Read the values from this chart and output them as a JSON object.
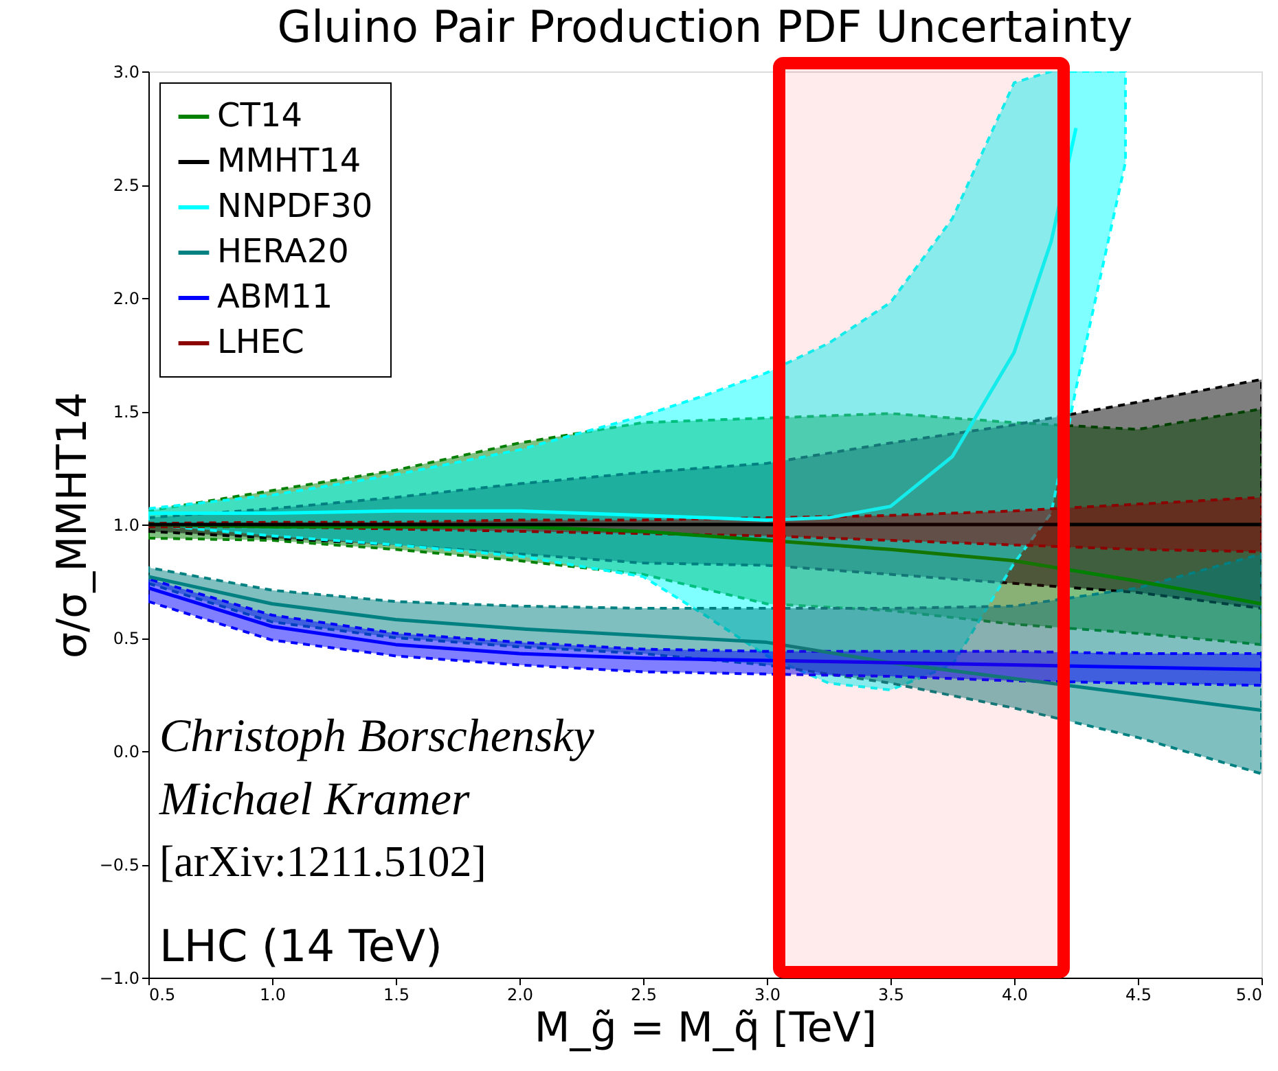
{
  "chart_data": {
    "type": "line",
    "title": "Gluino Pair Production PDF Uncertainty",
    "xlabel": "M_g̃ = M_q̃ [TeV]",
    "ylabel": "σ/σ_MMHT14",
    "xlim": [
      0.5,
      5.0
    ],
    "ylim": [
      -1.0,
      3.0
    ],
    "xticks": [
      0.5,
      {
        "value": 1,
        "label": "1.0"
      },
      1.5,
      {
        "value": 2,
        "label": "2.0"
      },
      2.5,
      {
        "value": 3,
        "label": "3.0"
      },
      3.5,
      {
        "value": 4,
        "label": "4.0"
      },
      4.5,
      {
        "value": 5,
        "label": "5.0"
      }
    ],
    "yticks": [
      {
        "value": -1,
        "label": "−1.0"
      },
      -0.5,
      {
        "value": 0,
        "label": "0.0"
      },
      0.5,
      {
        "value": 1,
        "label": "1.0"
      },
      1.5,
      {
        "value": 2,
        "label": "2.0"
      },
      2.5,
      {
        "value": 3,
        "label": "3.0"
      }
    ],
    "grid": false,
    "legend": "top left",
    "marker": "none",
    "line_style": "solid",
    "x": [
      0.5,
      1.0,
      1.5,
      2.0,
      2.5,
      3.0,
      3.5,
      4.0,
      4.5,
      5.0
    ],
    "series": [
      {
        "name": "CT14",
        "color": "#008000",
        "values": [
          1.0,
          0.99,
          0.99,
          0.99,
          0.97,
          0.93,
          0.89,
          0.84,
          0.75,
          0.65
        ],
        "upper": [
          1.06,
          1.15,
          1.24,
          1.36,
          1.45,
          1.47,
          1.49,
          1.45,
          1.42,
          1.51
        ],
        "lower": [
          0.94,
          0.93,
          0.89,
          0.84,
          0.78,
          0.65,
          0.62,
          0.56,
          0.52,
          0.47
        ]
      },
      {
        "name": "MMHT14",
        "color": "#000000",
        "values": [
          1.0,
          1.0,
          1.0,
          1.0,
          1.0,
          1.0,
          1.0,
          1.0,
          1.0,
          1.0
        ],
        "upper": [
          1.03,
          1.07,
          1.12,
          1.18,
          1.23,
          1.27,
          1.36,
          1.44,
          1.54,
          1.64
        ],
        "lower": [
          0.97,
          0.94,
          0.91,
          0.87,
          0.83,
          0.82,
          0.78,
          0.74,
          0.7,
          0.63
        ]
      },
      {
        "name": "NNPDF30",
        "color": "#00ffff",
        "x": [
          0.5,
          1.0,
          1.5,
          2.0,
          2.5,
          2.75,
          3.0,
          3.25,
          3.5,
          3.75,
          4.0,
          4.15,
          4.25,
          4.45
        ],
        "values": [
          1.05,
          1.05,
          1.06,
          1.06,
          1.04,
          1.03,
          1.02,
          1.03,
          1.08,
          1.3,
          1.76,
          2.25,
          2.75,
          null
        ],
        "upper": [
          1.07,
          1.13,
          1.22,
          1.33,
          1.48,
          1.57,
          1.67,
          1.8,
          1.98,
          2.35,
          2.95,
          3.0,
          3.0,
          3.0
        ],
        "lower": [
          1.0,
          0.95,
          0.91,
          0.86,
          0.77,
          0.6,
          0.42,
          0.3,
          0.27,
          0.38,
          0.83,
          1.05,
          1.6,
          2.6
        ]
      },
      {
        "name": "HERA20",
        "color": "#008080",
        "values": [
          0.77,
          0.65,
          0.58,
          0.54,
          0.51,
          0.48,
          0.39,
          0.32,
          0.25,
          0.18
        ],
        "upper": [
          0.81,
          0.71,
          0.66,
          0.64,
          0.63,
          0.63,
          0.63,
          0.64,
          0.72,
          0.87
        ],
        "lower": [
          0.74,
          0.57,
          0.5,
          0.46,
          0.43,
          0.38,
          0.3,
          0.19,
          0.06,
          -0.1
        ]
      },
      {
        "name": "ABM11",
        "color": "#0000ff",
        "values": [
          0.72,
          0.55,
          0.47,
          0.43,
          0.41,
          0.4,
          0.39,
          0.38,
          0.37,
          0.36
        ],
        "upper": [
          0.76,
          0.6,
          0.52,
          0.48,
          0.45,
          0.44,
          0.44,
          0.44,
          0.43,
          0.43
        ],
        "lower": [
          0.66,
          0.49,
          0.42,
          0.38,
          0.35,
          0.34,
          0.33,
          0.31,
          0.3,
          0.29
        ]
      },
      {
        "name": "LHEC",
        "color": "#8b0000",
        "values": [
          null,
          null,
          null,
          null,
          null,
          null,
          null,
          null,
          null,
          null
        ],
        "upper": [
          1.005,
          1.01,
          1.01,
          1.02,
          1.02,
          1.03,
          1.04,
          1.06,
          1.09,
          1.12
        ],
        "lower": [
          0.99,
          0.99,
          0.98,
          0.97,
          0.96,
          0.95,
          0.93,
          0.91,
          0.89,
          0.88
        ]
      }
    ],
    "bands": [
      {
        "axis": "x",
        "from": 3.05,
        "to": 4.2,
        "color": "#ff0000"
      }
    ],
    "annotations": [
      "Christoph Borschensky",
      "Michael Kramer",
      "[arXiv:1211.5102]",
      "LHC (14 TeV)"
    ]
  }
}
